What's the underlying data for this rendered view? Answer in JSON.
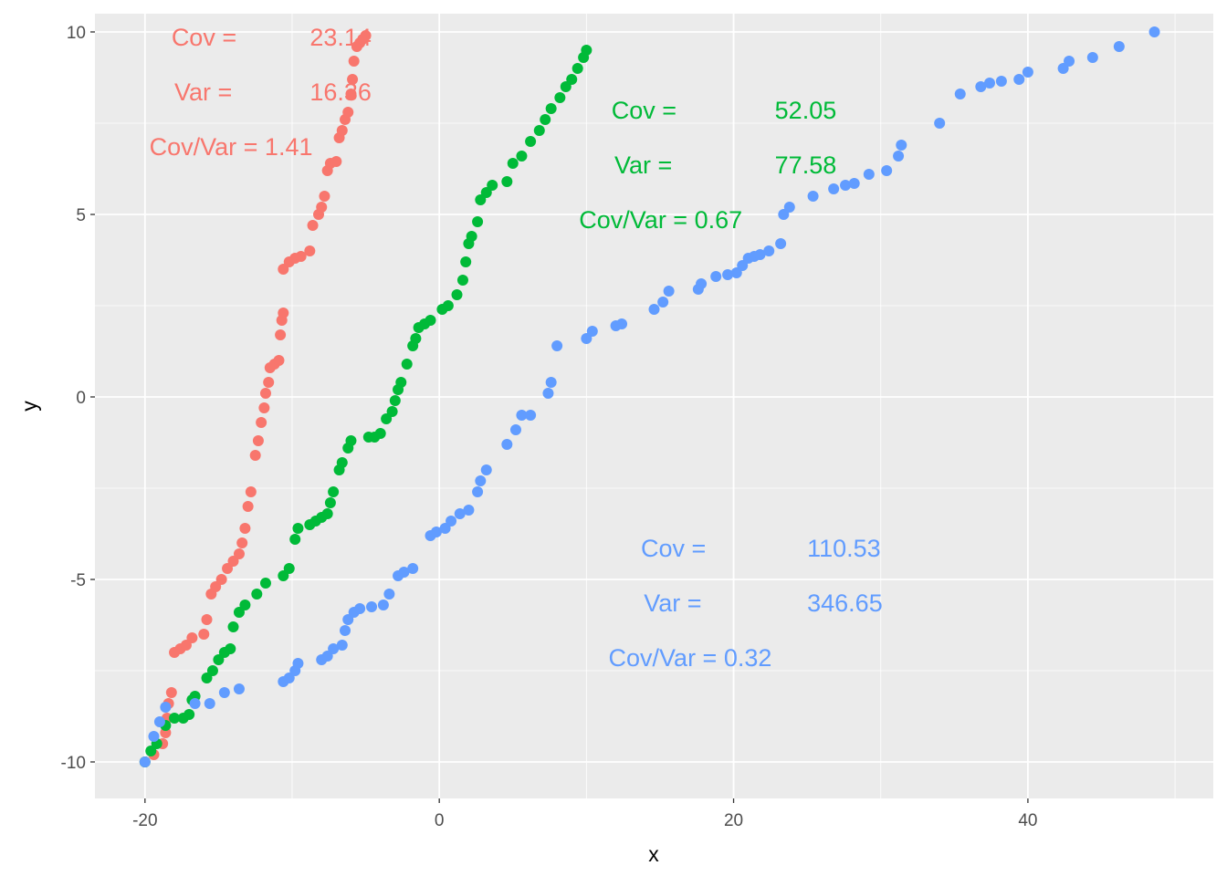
{
  "chart_data": {
    "type": "scatter",
    "xlabel": "x",
    "ylabel": "y",
    "xlim": [
      -23.4,
      52.6
    ],
    "ylim": [
      -11.0,
      10.5
    ],
    "x_ticks": [
      -20,
      0,
      20,
      40
    ],
    "x_tick_labels": [
      "-20",
      "0",
      "20",
      "40"
    ],
    "y_ticks": [
      -10,
      -5,
      0,
      5,
      10
    ],
    "y_tick_labels": [
      "-10",
      "-5",
      "0",
      "5",
      "10"
    ],
    "grid": true,
    "legend": "none",
    "background": "#ebebeb",
    "series": [
      {
        "color": "#f8766d",
        "annotation": {
          "cov_label": "Cov =",
          "cov_value": "23.14",
          "var_label": "Var =",
          "var_value": "16.36",
          "ratio_label": "Cov/Var = 1.41"
        },
        "points": [
          [
            -20,
            -10
          ],
          [
            -19.4,
            -9.8
          ],
          [
            -18.8,
            -9.5
          ],
          [
            -18.6,
            -9.2
          ],
          [
            -18.5,
            -8.8
          ],
          [
            -18.4,
            -8.4
          ],
          [
            -18.2,
            -8.1
          ],
          [
            -18.0,
            -7.0
          ],
          [
            -17.6,
            -6.9
          ],
          [
            -17.2,
            -6.8
          ],
          [
            -16.8,
            -6.6
          ],
          [
            -16.0,
            -6.5
          ],
          [
            -15.8,
            -6.1
          ],
          [
            -15.5,
            -5.4
          ],
          [
            -15.2,
            -5.2
          ],
          [
            -14.8,
            -5.0
          ],
          [
            -14.4,
            -4.7
          ],
          [
            -14.0,
            -4.5
          ],
          [
            -13.6,
            -4.3
          ],
          [
            -13.4,
            -4.0
          ],
          [
            -13.2,
            -3.6
          ],
          [
            -13.0,
            -3.0
          ],
          [
            -12.8,
            -2.6
          ],
          [
            -12.5,
            -1.6
          ],
          [
            -12.3,
            -1.2
          ],
          [
            -12.1,
            -0.7
          ],
          [
            -11.9,
            -0.3
          ],
          [
            -11.8,
            0.1
          ],
          [
            -11.6,
            0.4
          ],
          [
            -11.5,
            0.8
          ],
          [
            -11.2,
            0.9
          ],
          [
            -10.9,
            1.0
          ],
          [
            -10.8,
            1.7
          ],
          [
            -10.7,
            2.1
          ],
          [
            -10.6,
            2.3
          ],
          [
            -10.6,
            3.5
          ],
          [
            -10.2,
            3.7
          ],
          [
            -9.8,
            3.8
          ],
          [
            -9.4,
            3.85
          ],
          [
            -8.8,
            4.0
          ],
          [
            -8.6,
            4.7
          ],
          [
            -8.2,
            5.0
          ],
          [
            -8.0,
            5.2
          ],
          [
            -7.8,
            5.5
          ],
          [
            -7.6,
            6.2
          ],
          [
            -7.4,
            6.4
          ],
          [
            -7.0,
            6.45
          ],
          [
            -6.8,
            7.1
          ],
          [
            -6.6,
            7.3
          ],
          [
            -6.4,
            7.6
          ],
          [
            -6.2,
            7.8
          ],
          [
            -6.0,
            8.3
          ],
          [
            -5.9,
            8.7
          ],
          [
            -5.8,
            9.2
          ],
          [
            -5.6,
            9.6
          ],
          [
            -5.4,
            9.7
          ],
          [
            -5.2,
            9.8
          ],
          [
            -5.0,
            9.9
          ]
        ]
      },
      {
        "color": "#00ba38",
        "annotation": {
          "cov_label": "Cov =",
          "cov_value": "52.05",
          "var_label": "Var =",
          "var_value": "77.58",
          "ratio_label": "Cov/Var = 0.67"
        },
        "points": [
          [
            -20,
            -10
          ],
          [
            -19.6,
            -9.7
          ],
          [
            -19.2,
            -9.5
          ],
          [
            -18.6,
            -9.0
          ],
          [
            -18.0,
            -8.8
          ],
          [
            -17.4,
            -8.8
          ],
          [
            -17.0,
            -8.7
          ],
          [
            -16.8,
            -8.3
          ],
          [
            -16.6,
            -8.2
          ],
          [
            -15.8,
            -7.7
          ],
          [
            -15.4,
            -7.5
          ],
          [
            -15.0,
            -7.2
          ],
          [
            -14.6,
            -7.0
          ],
          [
            -14.2,
            -6.9
          ],
          [
            -14.0,
            -6.3
          ],
          [
            -13.6,
            -5.9
          ],
          [
            -13.2,
            -5.7
          ],
          [
            -12.4,
            -5.4
          ],
          [
            -11.8,
            -5.1
          ],
          [
            -10.6,
            -4.9
          ],
          [
            -10.2,
            -4.7
          ],
          [
            -9.8,
            -3.9
          ],
          [
            -9.6,
            -3.6
          ],
          [
            -8.8,
            -3.5
          ],
          [
            -8.4,
            -3.4
          ],
          [
            -8.0,
            -3.3
          ],
          [
            -7.6,
            -3.2
          ],
          [
            -7.4,
            -2.9
          ],
          [
            -7.2,
            -2.6
          ],
          [
            -6.8,
            -2.0
          ],
          [
            -6.6,
            -1.8
          ],
          [
            -6.2,
            -1.4
          ],
          [
            -6.0,
            -1.2
          ],
          [
            -4.8,
            -1.1
          ],
          [
            -4.4,
            -1.1
          ],
          [
            -4.0,
            -1.0
          ],
          [
            -3.6,
            -0.6
          ],
          [
            -3.2,
            -0.4
          ],
          [
            -3.0,
            -0.1
          ],
          [
            -2.8,
            0.2
          ],
          [
            -2.6,
            0.4
          ],
          [
            -2.2,
            0.9
          ],
          [
            -1.8,
            1.4
          ],
          [
            -1.6,
            1.6
          ],
          [
            -1.4,
            1.9
          ],
          [
            -1.0,
            2.0
          ],
          [
            -0.6,
            2.1
          ],
          [
            0.2,
            2.4
          ],
          [
            0.6,
            2.5
          ],
          [
            1.2,
            2.8
          ],
          [
            1.6,
            3.2
          ],
          [
            1.8,
            3.7
          ],
          [
            2.0,
            4.2
          ],
          [
            2.2,
            4.4
          ],
          [
            2.6,
            4.8
          ],
          [
            2.8,
            5.4
          ],
          [
            3.2,
            5.6
          ],
          [
            3.6,
            5.8
          ],
          [
            4.6,
            5.9
          ],
          [
            5.0,
            6.4
          ],
          [
            5.6,
            6.6
          ],
          [
            6.2,
            7.0
          ],
          [
            6.8,
            7.3
          ],
          [
            7.2,
            7.6
          ],
          [
            7.6,
            7.9
          ],
          [
            8.2,
            8.2
          ],
          [
            8.6,
            8.5
          ],
          [
            9.0,
            8.7
          ],
          [
            9.4,
            9.0
          ],
          [
            9.8,
            9.3
          ],
          [
            10.0,
            9.5
          ]
        ]
      },
      {
        "color": "#619cff",
        "annotation": {
          "cov_label": "Cov =",
          "cov_value": "110.53",
          "var_label": "Var =",
          "var_value": "346.65",
          "ratio_label": "Cov/Var = 0.32"
        },
        "points": [
          [
            -20,
            -10
          ],
          [
            -19.4,
            -9.3
          ],
          [
            -19.0,
            -8.9
          ],
          [
            -18.6,
            -8.5
          ],
          [
            -16.6,
            -8.4
          ],
          [
            -15.6,
            -8.4
          ],
          [
            -14.6,
            -8.1
          ],
          [
            -13.6,
            -8.0
          ],
          [
            -10.6,
            -7.8
          ],
          [
            -10.2,
            -7.7
          ],
          [
            -9.8,
            -7.5
          ],
          [
            -9.6,
            -7.3
          ],
          [
            -8.0,
            -7.2
          ],
          [
            -7.6,
            -7.1
          ],
          [
            -7.2,
            -6.9
          ],
          [
            -6.6,
            -6.8
          ],
          [
            -6.4,
            -6.4
          ],
          [
            -6.2,
            -6.1
          ],
          [
            -5.8,
            -5.9
          ],
          [
            -5.4,
            -5.8
          ],
          [
            -4.6,
            -5.75
          ],
          [
            -3.8,
            -5.7
          ],
          [
            -3.4,
            -5.4
          ],
          [
            -2.8,
            -4.9
          ],
          [
            -2.4,
            -4.8
          ],
          [
            -1.8,
            -4.7
          ],
          [
            -0.6,
            -3.8
          ],
          [
            -0.2,
            -3.7
          ],
          [
            0.4,
            -3.6
          ],
          [
            0.8,
            -3.4
          ],
          [
            1.4,
            -3.2
          ],
          [
            2.0,
            -3.1
          ],
          [
            2.6,
            -2.6
          ],
          [
            2.8,
            -2.3
          ],
          [
            3.2,
            -2.0
          ],
          [
            4.6,
            -1.3
          ],
          [
            5.2,
            -0.9
          ],
          [
            5.6,
            -0.5
          ],
          [
            6.2,
            -0.5
          ],
          [
            7.4,
            0.1
          ],
          [
            7.6,
            0.4
          ],
          [
            8.0,
            1.4
          ],
          [
            10.0,
            1.6
          ],
          [
            10.4,
            1.8
          ],
          [
            12.0,
            1.95
          ],
          [
            12.4,
            2.0
          ],
          [
            14.6,
            2.4
          ],
          [
            15.2,
            2.6
          ],
          [
            15.6,
            2.9
          ],
          [
            17.6,
            2.95
          ],
          [
            17.8,
            3.1
          ],
          [
            18.8,
            3.3
          ],
          [
            19.6,
            3.35
          ],
          [
            20.2,
            3.4
          ],
          [
            20.6,
            3.6
          ],
          [
            21.0,
            3.8
          ],
          [
            21.4,
            3.85
          ],
          [
            21.8,
            3.9
          ],
          [
            22.4,
            4.0
          ],
          [
            23.2,
            4.2
          ],
          [
            23.4,
            5.0
          ],
          [
            23.8,
            5.2
          ],
          [
            25.4,
            5.5
          ],
          [
            26.8,
            5.7
          ],
          [
            27.6,
            5.8
          ],
          [
            28.2,
            5.85
          ],
          [
            29.2,
            6.1
          ],
          [
            30.4,
            6.2
          ],
          [
            31.2,
            6.6
          ],
          [
            31.4,
            6.9
          ],
          [
            34.0,
            7.5
          ],
          [
            35.4,
            8.3
          ],
          [
            36.8,
            8.5
          ],
          [
            37.4,
            8.6
          ],
          [
            38.2,
            8.65
          ],
          [
            39.4,
            8.7
          ],
          [
            40.0,
            8.9
          ],
          [
            42.4,
            9.0
          ],
          [
            42.8,
            9.2
          ],
          [
            44.4,
            9.3
          ],
          [
            46.2,
            9.6
          ],
          [
            48.6,
            10.0
          ]
        ]
      }
    ]
  }
}
